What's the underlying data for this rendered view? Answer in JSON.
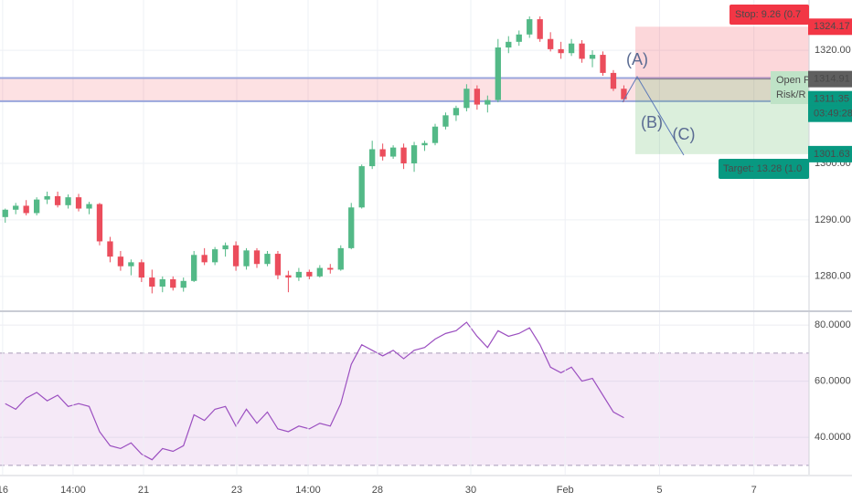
{
  "chart_data": [
    {
      "type": "candlestick",
      "x": [
        0,
        1,
        2,
        3,
        4,
        5,
        6,
        7,
        8,
        9,
        10,
        11,
        12,
        13,
        14,
        15,
        16,
        17,
        18,
        19,
        20,
        21,
        22,
        23,
        24,
        25,
        26,
        27,
        28,
        29,
        30,
        31,
        32,
        33,
        34,
        35,
        36,
        37,
        38,
        39,
        40,
        41,
        42,
        43,
        44,
        45,
        46,
        47,
        48,
        49,
        50,
        51,
        52,
        53,
        54,
        55,
        56,
        57,
        58,
        59
      ],
      "open": [
        1290.5,
        1291.8,
        1292.5,
        1291.2,
        1293.6,
        1294.2,
        1292.6,
        1294,
        1292,
        1292.8,
        1286.2,
        1283.5,
        1281.8,
        1282.5,
        1279.8,
        1278.2,
        1279.5,
        1278,
        1279.2,
        1283.8,
        1282.5,
        1284.8,
        1285.5,
        1281.8,
        1284.6,
        1282.2,
        1284,
        1280.2,
        1279.8,
        1280.8,
        1280,
        1281.5,
        1281.2,
        1285,
        1292.2,
        1299.5,
        1302.5,
        1301.2,
        1302.8,
        1300,
        1303.2,
        1303.6,
        1306.5,
        1308.5,
        1309.8,
        1313.2,
        1310.4,
        1311.2,
        1320.5,
        1321.5,
        1322.8,
        1325.5,
        1322,
        1320.2,
        1319.5,
        1321.2,
        1318.5,
        1319.2,
        1316,
        1313.2
      ],
      "high": [
        1292,
        1293,
        1293.5,
        1294,
        1295,
        1295,
        1294.5,
        1294.6,
        1293.2,
        1293,
        1287,
        1284.5,
        1283,
        1283,
        1281.2,
        1280,
        1280,
        1279.8,
        1284.5,
        1285,
        1285.2,
        1286,
        1286.2,
        1285,
        1285,
        1284.5,
        1284.5,
        1281,
        1281.5,
        1281.2,
        1282,
        1282.2,
        1285.5,
        1293,
        1299.8,
        1304,
        1303.5,
        1303.2,
        1303.5,
        1303.8,
        1304,
        1307,
        1309,
        1310.2,
        1314,
        1313.8,
        1312,
        1322,
        1322.5,
        1323.5,
        1326,
        1326,
        1323.2,
        1321.5,
        1322,
        1321.8,
        1320,
        1319.8,
        1316.5,
        1313.8
      ],
      "low": [
        1289.5,
        1291,
        1290.8,
        1290.8,
        1292.8,
        1292.2,
        1292,
        1291.5,
        1291,
        1285.5,
        1282.5,
        1281,
        1280.2,
        1279,
        1277,
        1277.2,
        1277.5,
        1277.3,
        1279,
        1282,
        1282,
        1283.5,
        1281,
        1281.2,
        1281.5,
        1281.8,
        1279.5,
        1277.2,
        1279.2,
        1279.5,
        1279.8,
        1280.5,
        1281,
        1284.8,
        1292,
        1299,
        1300.5,
        1300.8,
        1299,
        1298.5,
        1302.2,
        1303.2,
        1306,
        1307.5,
        1309.2,
        1309.5,
        1309,
        1310.8,
        1319.5,
        1320.8,
        1322.2,
        1321.5,
        1319.8,
        1318.5,
        1319,
        1317.8,
        1317,
        1315.5,
        1312.8,
        1310.9
      ],
      "close": [
        1291.8,
        1292.5,
        1291.2,
        1293.6,
        1294.2,
        1292.6,
        1294,
        1292,
        1292.8,
        1286.2,
        1283.5,
        1281.8,
        1282.5,
        1279.8,
        1278.2,
        1279.5,
        1278,
        1279.2,
        1283.8,
        1282.5,
        1284.8,
        1285.5,
        1281.8,
        1284.6,
        1282.2,
        1284,
        1280.2,
        1279.8,
        1280.8,
        1280,
        1281.5,
        1281.2,
        1285,
        1292.2,
        1299.5,
        1302.5,
        1301.2,
        1302.8,
        1300,
        1303.2,
        1303.6,
        1306.5,
        1308.5,
        1309.8,
        1313.2,
        1310.4,
        1311.2,
        1320.5,
        1321.5,
        1322.8,
        1325.5,
        1322,
        1320.2,
        1319.5,
        1321.2,
        1318.5,
        1319.2,
        1316,
        1313.2,
        1311.35
      ],
      "up_color": "#53b987",
      "down_color": "#eb4d5c",
      "xlim": [
        -0.5,
        76.66
      ],
      "xticks": [
        {
          "value": -0.25,
          "label": "16"
        },
        {
          "value": 6.47,
          "label": "14:00"
        },
        {
          "value": 13.19,
          "label": "21"
        },
        {
          "value": 22.08,
          "label": "23"
        },
        {
          "value": 28.88,
          "label": "14:00"
        },
        {
          "value": 35.5,
          "label": "28"
        },
        {
          "value": 44.4,
          "label": "30"
        },
        {
          "value": 53.4,
          "label": "Feb"
        },
        {
          "value": 62.4,
          "label": "5"
        },
        {
          "value": 71.4,
          "label": "7"
        }
      ],
      "ylim": [
        1274,
        1328.9
      ],
      "yticks": [
        {
          "value": 1280,
          "label": "1280.00"
        },
        {
          "value": 1290,
          "label": "1290.00"
        },
        {
          "value": 1300,
          "label": "1300.00"
        },
        {
          "value": 1320,
          "label": "1320.00"
        }
      ],
      "grid": true,
      "countdown": "03:49:28",
      "zone": [
        1311.0,
        1315.1
      ],
      "position": {
        "entry": 1314.91,
        "stop": 1324.17,
        "target": 1301.63,
        "stop_label": "Stop: 9.26 (0.7",
        "target_label": "Target: 13.28 (1.0",
        "entry_label": [
          "Open P",
          "Risk/R"
        ]
      },
      "annotations": [
        "(A)",
        "(B)",
        "(C)"
      ]
    },
    {
      "type": "line",
      "x": [
        0,
        1,
        2,
        3,
        4,
        5,
        6,
        7,
        8,
        9,
        10,
        11,
        12,
        13,
        14,
        15,
        16,
        17,
        18,
        19,
        20,
        21,
        22,
        23,
        24,
        25,
        26,
        27,
        28,
        29,
        30,
        31,
        32,
        33,
        34,
        35,
        36,
        37,
        38,
        39,
        40,
        41,
        42,
        43,
        44,
        45,
        46,
        47,
        48,
        49,
        50,
        51,
        52,
        53,
        54,
        55,
        56,
        57,
        58,
        59
      ],
      "values": [
        52,
        50,
        54,
        56,
        53,
        55,
        51,
        52,
        51,
        42,
        37,
        36,
        38,
        34,
        32,
        36,
        35,
        37,
        48,
        46,
        50,
        51,
        44,
        50,
        45,
        49,
        43,
        42,
        44,
        43,
        45,
        44,
        52,
        66,
        73,
        71,
        69,
        71,
        68,
        71,
        72,
        75,
        77,
        78,
        81,
        76,
        72,
        78,
        76,
        77,
        79,
        73,
        65,
        63,
        65,
        60,
        61,
        55,
        49,
        47
      ],
      "color": "#9b4fc0",
      "xlim": [
        -0.5,
        76.66
      ],
      "ylim": [
        26.7,
        84.6
      ],
      "yticks": [
        {
          "value": 40,
          "label": "40.0000"
        },
        {
          "value": 60,
          "label": "60.0000"
        },
        {
          "value": 80,
          "label": "80.0000"
        }
      ],
      "band": [
        30,
        70
      ],
      "grid": true
    }
  ]
}
